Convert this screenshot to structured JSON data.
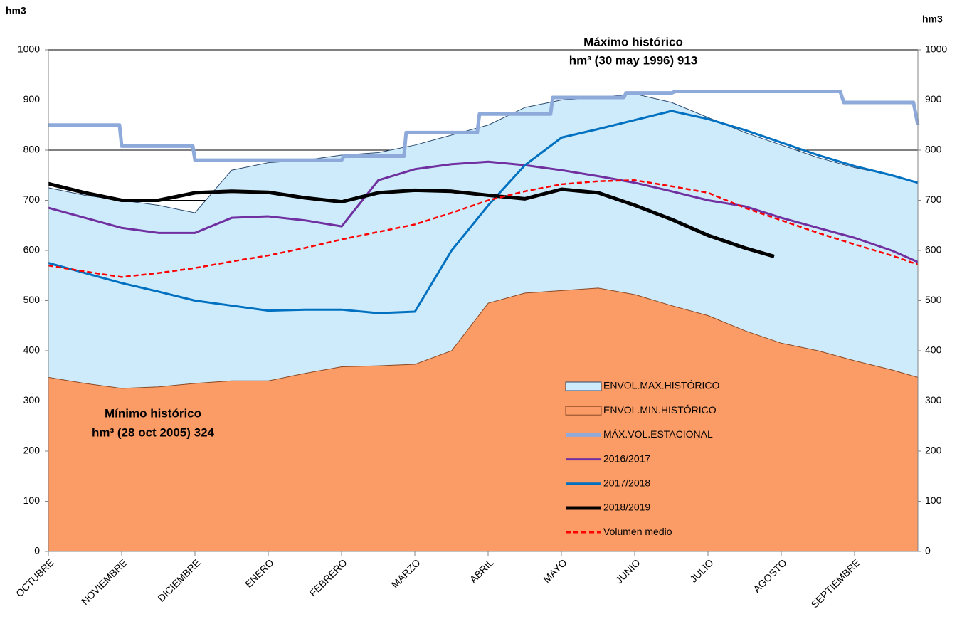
{
  "chart_data": {
    "type": "line",
    "y_label": "hm3",
    "y2_label": "hm3",
    "categories": [
      "OCTUBRE",
      "NOVIEMBRE",
      "DICIEMBRE",
      "ENERO",
      "FEBRERO",
      "MARZO",
      "ABRIL",
      "MAYO",
      "JUNIO",
      "JULIO",
      "AGOSTO",
      "SEPTIEMBRE"
    ],
    "xlim": [
      0,
      11.86
    ],
    "x": [
      0,
      0.5,
      1,
      1.5,
      2,
      2.5,
      3,
      3.5,
      4,
      4.5,
      5,
      5.5,
      6,
      6.5,
      7,
      7.5,
      8,
      8.5,
      9,
      9.5,
      10,
      10.5,
      11,
      11.5,
      11.86
    ],
    "ylim": [
      0,
      1000
    ],
    "yticks": [
      0,
      100,
      200,
      300,
      400,
      500,
      600,
      700,
      800,
      900,
      1000
    ],
    "y2lim": [
      0,
      1000
    ],
    "y2ticks": [
      0,
      100,
      200,
      300,
      400,
      500,
      600,
      700,
      800,
      900,
      1000
    ],
    "grid": true,
    "series": [
      {
        "name": "ENVOL.MAX.HISTÓRICO",
        "kind": "area",
        "color": "#cdebfb",
        "stroke": "#2b4a6f",
        "values": [
          725,
          710,
          700,
          690,
          675,
          760,
          775,
          780,
          790,
          795,
          810,
          830,
          850,
          885,
          900,
          905,
          912,
          895,
          865,
          835,
          810,
          785,
          765,
          750,
          735
        ]
      },
      {
        "name": "ENVOL.MIN.HISTÓRICO",
        "kind": "area",
        "color": "#fb9b65",
        "stroke": "#8a4a26",
        "values": [
          347,
          335,
          325,
          328,
          335,
          340,
          340,
          355,
          368,
          370,
          373,
          400,
          495,
          515,
          520,
          525,
          512,
          490,
          470,
          440,
          415,
          400,
          380,
          362,
          347
        ]
      },
      {
        "name": "MÁX.VOL.ESTACIONAL",
        "kind": "line",
        "color": "#8eaadb",
        "width": 5,
        "x": [
          0,
          0.97,
          1.0,
          1.97,
          2.0,
          4.0,
          4.03,
          4.85,
          4.88,
          5.85,
          5.88,
          6.85,
          6.88,
          7.85,
          7.88,
          8.5,
          8.55,
          10.8,
          10.85,
          11.8,
          11.86
        ],
        "values": [
          850,
          850,
          808,
          808,
          780,
          780,
          788,
          788,
          835,
          835,
          872,
          872,
          905,
          905,
          914,
          914,
          917,
          917,
          895,
          895,
          850
        ]
      },
      {
        "name": "2016/2017",
        "kind": "line",
        "color": "#7030a0",
        "width": 3,
        "values": [
          685,
          665,
          645,
          635,
          635,
          665,
          668,
          660,
          648,
          740,
          762,
          772,
          777,
          770,
          760,
          748,
          735,
          718,
          700,
          688,
          665,
          645,
          625,
          600,
          577
        ]
      },
      {
        "name": "2017/2018",
        "kind": "line",
        "color": "#0070c0",
        "width": 3,
        "values": [
          575,
          555,
          535,
          518,
          500,
          490,
          480,
          482,
          482,
          475,
          478,
          600,
          690,
          770,
          825,
          842,
          860,
          878,
          862,
          840,
          815,
          790,
          768,
          750,
          735
        ]
      },
      {
        "name": "2018/2019",
        "kind": "line",
        "color": "#000000",
        "width": 5,
        "x": [
          0,
          0.5,
          1,
          1.5,
          2,
          2.5,
          3,
          3.5,
          4,
          4.5,
          5,
          5.5,
          6,
          6.5,
          7,
          7.5,
          8,
          8.5,
          9,
          9.5,
          9.9
        ],
        "values": [
          733,
          715,
          700,
          700,
          715,
          718,
          716,
          705,
          697,
          715,
          720,
          718,
          710,
          703,
          722,
          715,
          690,
          662,
          630,
          605,
          588
        ]
      },
      {
        "name": "Volumen medio",
        "kind": "line",
        "color": "#ff0000",
        "width": 2.5,
        "dashed": true,
        "values": [
          570,
          558,
          547,
          555,
          565,
          578,
          590,
          605,
          622,
          637,
          652,
          675,
          700,
          718,
          732,
          738,
          740,
          728,
          715,
          685,
          660,
          635,
          612,
          590,
          572
        ]
      }
    ],
    "annotations": [
      {
        "lines": [
          "Máximo histórico",
          "hm³ (30 may 1996) 913"
        ],
        "color": "#1f6fc1"
      },
      {
        "lines": [
          "Mínimo histórico",
          "hm³ (28 oct 2005) 324"
        ],
        "color": "#000000"
      }
    ]
  }
}
